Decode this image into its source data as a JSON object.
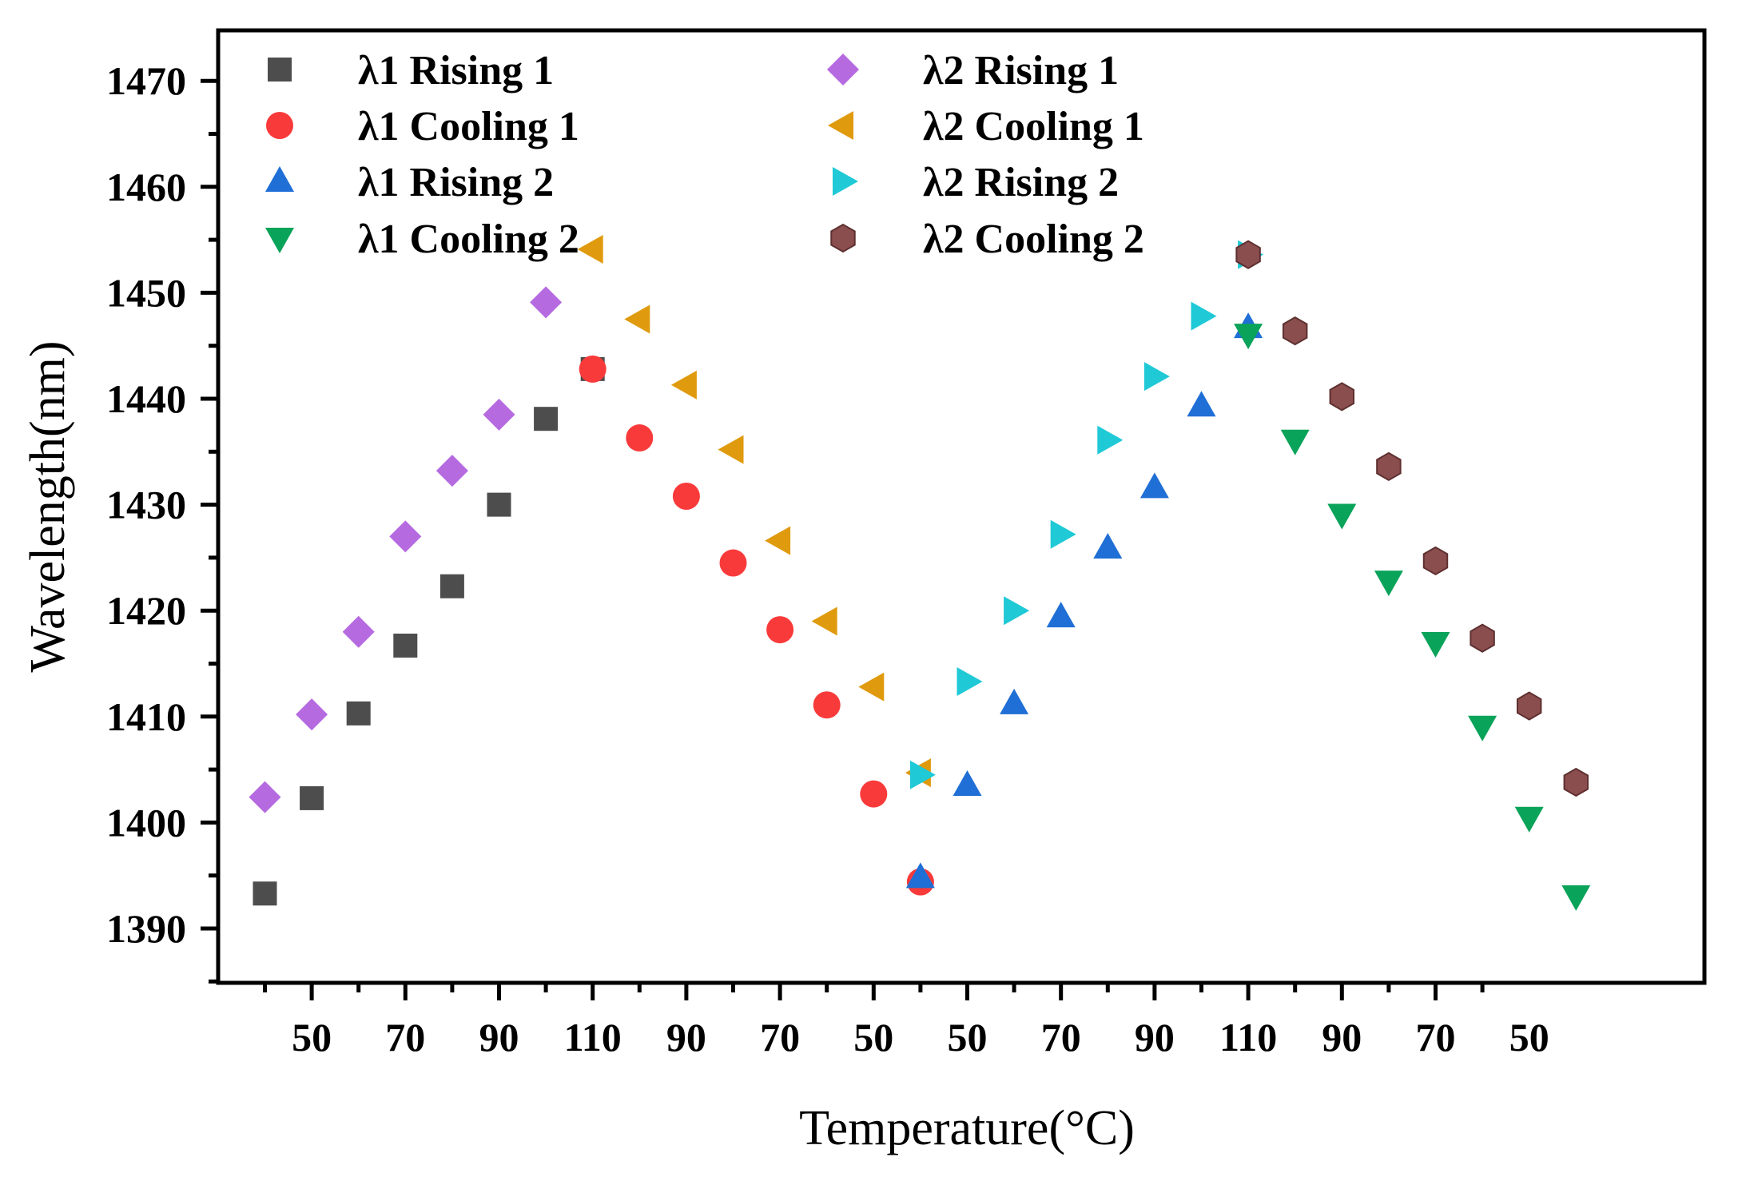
{
  "chart_data": {
    "type": "scatter",
    "xlabel": "Temperature(°C)",
    "ylabel": "Wavelength(nm)",
    "ylim": [
      1381,
      1478
    ],
    "yticks": [
      1390,
      1400,
      1410,
      1420,
      1430,
      1440,
      1450,
      1460,
      1470
    ],
    "x_positions": [
      1,
      29
    ],
    "xtick_labels": [
      {
        "pos": 4,
        "label": "50"
      },
      {
        "pos": 6,
        "label": "70"
      },
      {
        "pos": 8,
        "label": "90"
      },
      {
        "pos": 10,
        "label": "110"
      },
      {
        "pos": 12,
        "label": "90"
      },
      {
        "pos": 14,
        "label": "70"
      },
      {
        "pos": 16,
        "label": "50"
      },
      {
        "pos": 18,
        "label": "50"
      },
      {
        "pos": 20,
        "label": "70"
      },
      {
        "pos": 22,
        "label": "90"
      },
      {
        "pos": 24,
        "label": "110"
      },
      {
        "pos": 26,
        "label": "90"
      },
      {
        "pos": 28,
        "label": "70"
      },
      {
        "pos": 30,
        "label": "50"
      }
    ],
    "legend_position": "top-left",
    "grid": false,
    "series": [
      {
        "name": "λ1 Rising 1",
        "marker": "square",
        "color": "#4d4d4d",
        "points": [
          [
            3,
            1393.3
          ],
          [
            4,
            1402.3
          ],
          [
            5,
            1410.3
          ],
          [
            6,
            1416.7
          ],
          [
            7,
            1422.3
          ],
          [
            8,
            1430.0
          ],
          [
            9,
            1438.1
          ],
          [
            10,
            1442.8
          ]
        ]
      },
      {
        "name": "λ1 Cooling 1",
        "marker": "circle",
        "color": "#f93a3a",
        "points": [
          [
            10,
            1442.8
          ],
          [
            11,
            1436.3
          ],
          [
            12,
            1430.8
          ],
          [
            13,
            1424.5
          ],
          [
            14,
            1418.2
          ],
          [
            15,
            1411.1
          ],
          [
            16,
            1402.7
          ],
          [
            17,
            1394.4
          ]
        ]
      },
      {
        "name": "λ1 Rising 2",
        "marker": "triangle-up",
        "color": "#1f6fd6",
        "points": [
          [
            17,
            1394.8
          ],
          [
            18,
            1403.5
          ],
          [
            19,
            1411.2
          ],
          [
            20,
            1419.4
          ],
          [
            21,
            1425.9
          ],
          [
            22,
            1431.6
          ],
          [
            23,
            1439.3
          ],
          [
            24,
            1446.7
          ]
        ]
      },
      {
        "name": "λ1 Cooling 2",
        "marker": "triangle-down",
        "color": "#0aa35a",
        "points": [
          [
            24,
            1446.1
          ],
          [
            25,
            1436.1
          ],
          [
            26,
            1429.1
          ],
          [
            27,
            1422.8
          ],
          [
            28,
            1417.0
          ],
          [
            29,
            1409.1
          ],
          [
            30,
            1400.5
          ],
          [
            31,
            1393.1
          ]
        ]
      },
      {
        "name": "λ2 Rising 1",
        "marker": "diamond",
        "color": "#b66ae0",
        "points": [
          [
            3,
            1402.4
          ],
          [
            4,
            1410.2
          ],
          [
            5,
            1418.0
          ],
          [
            6,
            1427.0
          ],
          [
            7,
            1433.2
          ],
          [
            8,
            1438.5
          ],
          [
            9,
            1449.1
          ]
        ]
      },
      {
        "name": "λ2 Cooling 1",
        "marker": "triangle-left",
        "color": "#e09a0e",
        "points": [
          [
            10,
            1454.1
          ],
          [
            11,
            1447.5
          ],
          [
            12,
            1441.3
          ],
          [
            13,
            1435.2
          ],
          [
            14,
            1426.6
          ],
          [
            15,
            1419.0
          ],
          [
            16,
            1412.8
          ],
          [
            17,
            1404.7
          ]
        ]
      },
      {
        "name": "λ2 Rising 2",
        "marker": "triangle-right",
        "color": "#1fc9d6",
        "points": [
          [
            17,
            1404.5
          ],
          [
            18,
            1413.3
          ],
          [
            19,
            1420.0
          ],
          [
            20,
            1427.2
          ],
          [
            21,
            1436.1
          ],
          [
            22,
            1442.1
          ],
          [
            23,
            1447.8
          ],
          [
            24,
            1453.6
          ]
        ]
      },
      {
        "name": "λ2 Cooling 2",
        "marker": "hexagon",
        "color": "#8b4e4e",
        "points": [
          [
            24,
            1453.6
          ],
          [
            25,
            1446.4
          ],
          [
            26,
            1440.2
          ],
          [
            27,
            1433.6
          ],
          [
            28,
            1424.7
          ],
          [
            29,
            1417.4
          ],
          [
            30,
            1411.0
          ],
          [
            31,
            1403.8
          ]
        ]
      }
    ]
  }
}
